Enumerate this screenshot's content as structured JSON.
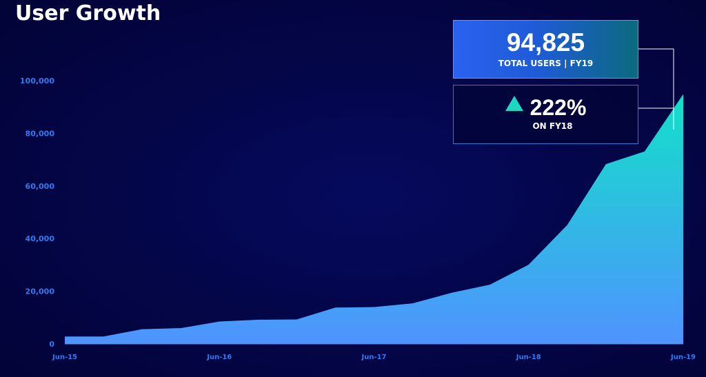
{
  "title": "User Growth",
  "stats": {
    "total_value": "94,825",
    "total_caption": "TOTAL USERS | FY19",
    "growth_value": "222%",
    "growth_caption": "ON FY18",
    "growth_icon": "up-triangle-icon"
  },
  "colors": {
    "background": "#04064a",
    "area_top": "#12e0c8",
    "area_bottom": "#4f93ff",
    "tick_label": "#2f7bf0",
    "accent": "#1fd6c1"
  },
  "chart_data": {
    "type": "area",
    "title": "User Growth",
    "xlabel": "",
    "ylabel": "",
    "x_tick_labels": [
      "Jun-15",
      "Jun-16",
      "Jun-17",
      "Jun-18",
      "Jun-19"
    ],
    "y_tick_labels": [
      "0",
      "20,000",
      "40,000",
      "60,000",
      "80,000",
      "100,000"
    ],
    "ylim": [
      0,
      100000
    ],
    "grid": false,
    "legend": "none",
    "series": [
      {
        "values": [
          2800,
          2800,
          5600,
          6000,
          8500,
          9200,
          9300,
          13800,
          14000,
          15400,
          19400,
          22500,
          30100,
          45200,
          68300,
          73100,
          94825
        ]
      }
    ]
  }
}
